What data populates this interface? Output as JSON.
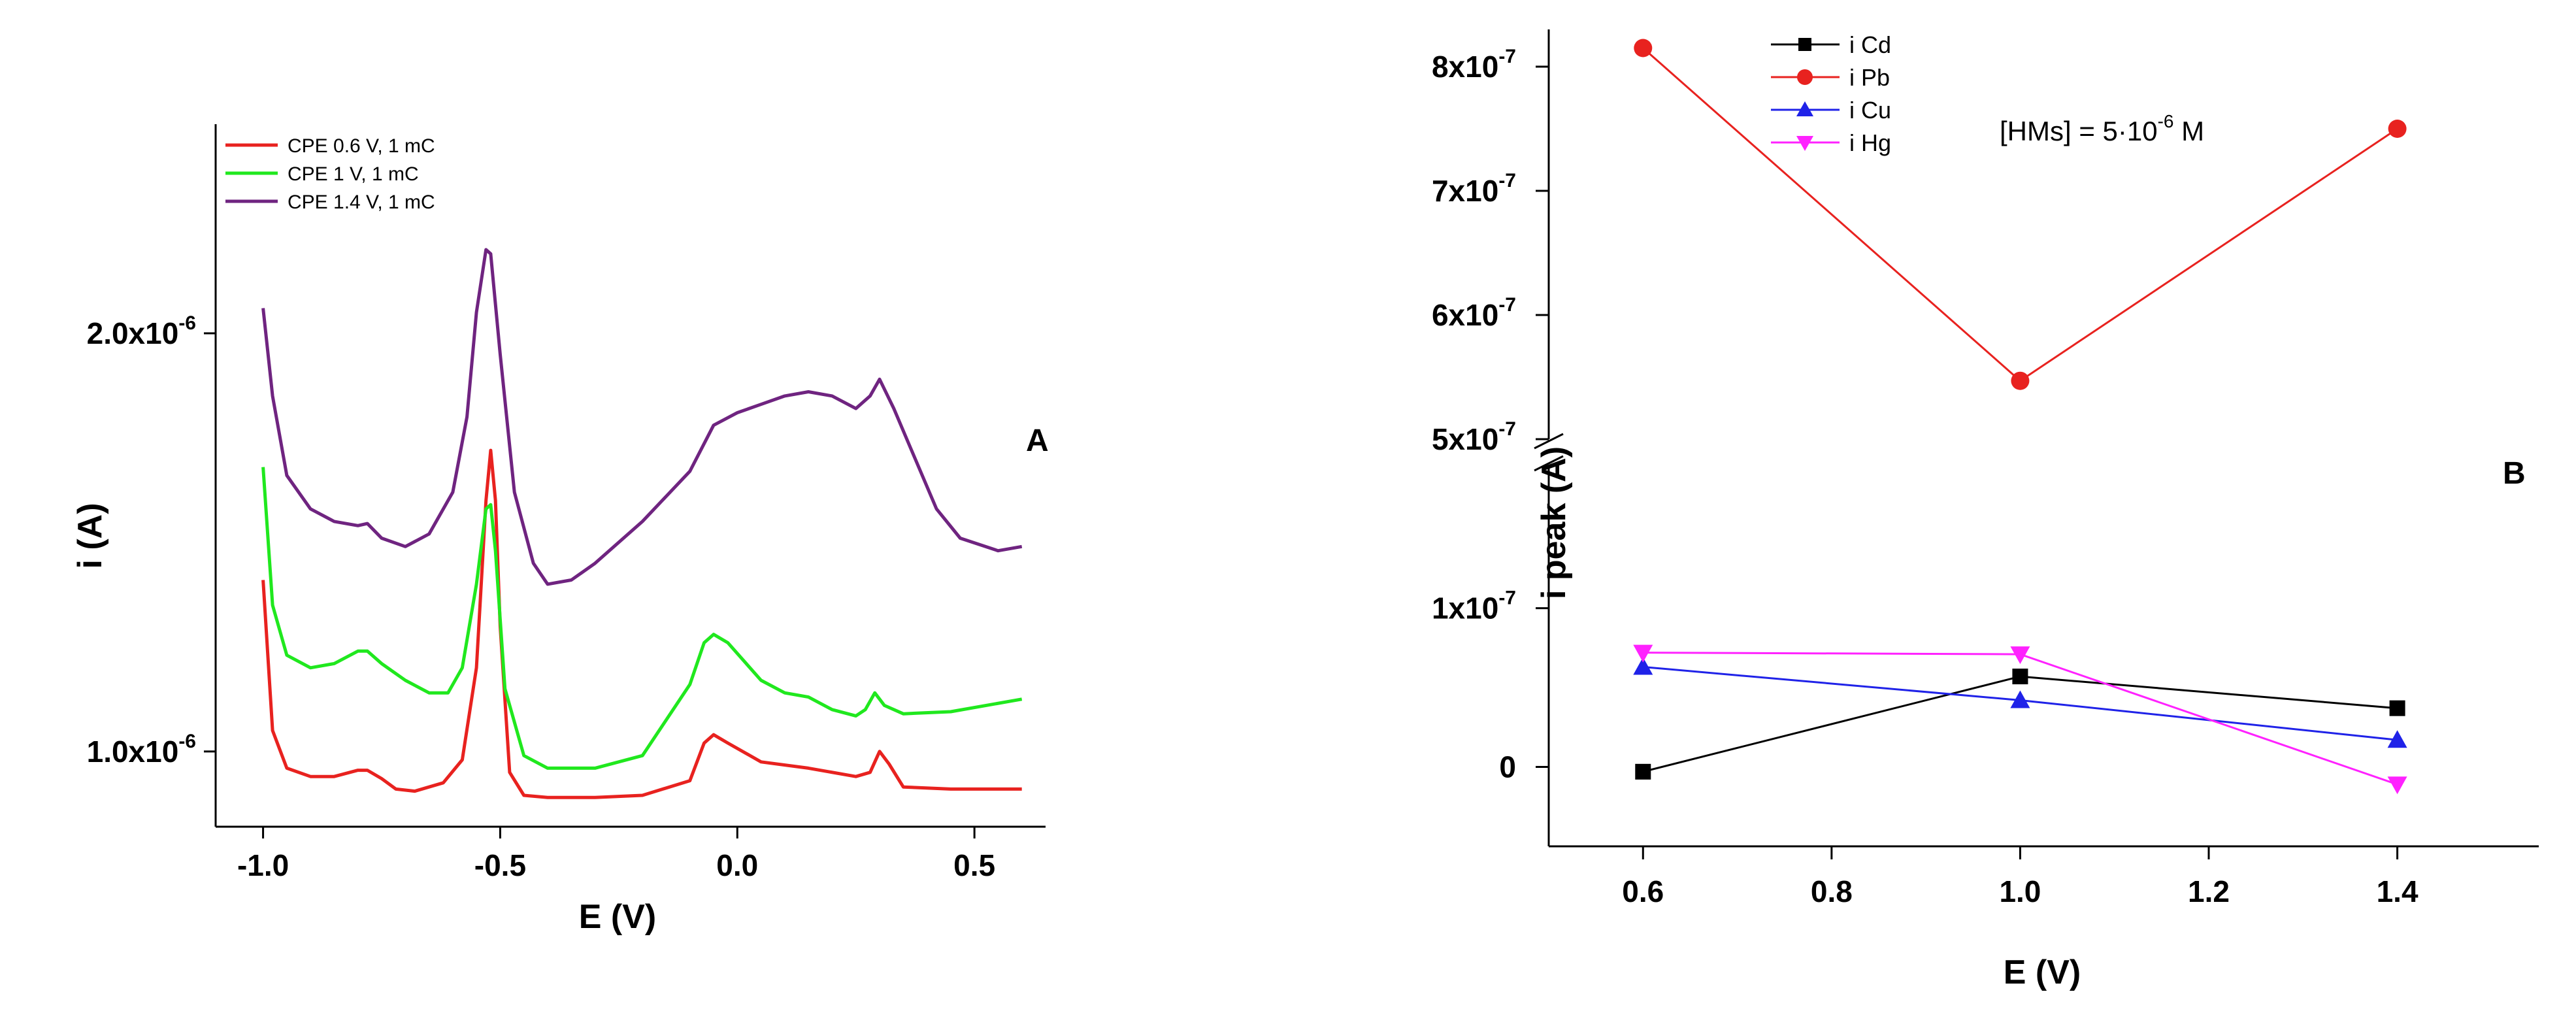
{
  "chart_data": [
    {
      "panel": "A",
      "type": "line",
      "xlabel": "E (V)",
      "ylabel": "i (A)",
      "xlim": [
        -1.1,
        0.65
      ],
      "ylim": [
        8.2e-07,
        2.5e-06
      ],
      "x_ticks": [
        -1.0,
        -0.5,
        0.0,
        0.5
      ],
      "x_tick_labels": [
        "-1.0",
        "-0.5",
        "0.0",
        "0.5"
      ],
      "y_ticks": [
        1e-06,
        2e-06
      ],
      "y_tick_mantissas": [
        "1.0x10",
        "2.0x10"
      ],
      "y_tick_exponents": [
        "-6",
        "-6"
      ],
      "legend_position": "top-left",
      "grid": false,
      "series": [
        {
          "name": "CPE 0.6 V, 1 mC",
          "color": "#e8221f",
          "points": [
            [
              -1.0,
              1.41e-06
            ],
            [
              -0.98,
              1.05e-06
            ],
            [
              -0.95,
              9.6e-07
            ],
            [
              -0.9,
              9.4e-07
            ],
            [
              -0.85,
              9.4e-07
            ],
            [
              -0.8,
              9.55e-07
            ],
            [
              -0.78,
              9.55e-07
            ],
            [
              -0.75,
              9.35e-07
            ],
            [
              -0.72,
              9.1e-07
            ],
            [
              -0.68,
              9.05e-07
            ],
            [
              -0.62,
              9.25e-07
            ],
            [
              -0.58,
              9.8e-07
            ],
            [
              -0.55,
              1.2e-06
            ],
            [
              -0.53,
              1.6e-06
            ],
            [
              -0.52,
              1.72e-06
            ],
            [
              -0.51,
              1.6e-06
            ],
            [
              -0.5,
              1.3e-06
            ],
            [
              -0.48,
              9.5e-07
            ],
            [
              -0.45,
              8.95e-07
            ],
            [
              -0.4,
              8.9e-07
            ],
            [
              -0.3,
              8.9e-07
            ],
            [
              -0.2,
              8.95e-07
            ],
            [
              -0.1,
              9.3e-07
            ],
            [
              -0.07,
              1.02e-06
            ],
            [
              -0.05,
              1.04e-06
            ],
            [
              -0.02,
              1.02e-06
            ],
            [
              0.05,
              9.75e-07
            ],
            [
              0.15,
              9.6e-07
            ],
            [
              0.25,
              9.4e-07
            ],
            [
              0.28,
              9.5e-07
            ],
            [
              0.3,
              1e-06
            ],
            [
              0.32,
              9.7e-07
            ],
            [
              0.35,
              9.15e-07
            ],
            [
              0.45,
              9.1e-07
            ],
            [
              0.6,
              9.1e-07
            ]
          ]
        },
        {
          "name": "CPE 1 V, 1 mC",
          "color": "#20e81e",
          "points": [
            [
              -1.0,
              1.68e-06
            ],
            [
              -0.98,
              1.35e-06
            ],
            [
              -0.95,
              1.23e-06
            ],
            [
              -0.9,
              1.2e-06
            ],
            [
              -0.85,
              1.21e-06
            ],
            [
              -0.8,
              1.24e-06
            ],
            [
              -0.78,
              1.24e-06
            ],
            [
              -0.75,
              1.21e-06
            ],
            [
              -0.7,
              1.17e-06
            ],
            [
              -0.65,
              1.14e-06
            ],
            [
              -0.61,
              1.14e-06
            ],
            [
              -0.58,
              1.2e-06
            ],
            [
              -0.55,
              1.4e-06
            ],
            [
              -0.53,
              1.58e-06
            ],
            [
              -0.52,
              1.59e-06
            ],
            [
              -0.51,
              1.48e-06
            ],
            [
              -0.49,
              1.15e-06
            ],
            [
              -0.45,
              9.9e-07
            ],
            [
              -0.4,
              9.6e-07
            ],
            [
              -0.3,
              9.6e-07
            ],
            [
              -0.2,
              9.9e-07
            ],
            [
              -0.1,
              1.16e-06
            ],
            [
              -0.07,
              1.26e-06
            ],
            [
              -0.05,
              1.28e-06
            ],
            [
              -0.02,
              1.26e-06
            ],
            [
              0.05,
              1.17e-06
            ],
            [
              0.1,
              1.14e-06
            ],
            [
              0.15,
              1.13e-06
            ],
            [
              0.2,
              1.1e-06
            ],
            [
              0.25,
              1.085e-06
            ],
            [
              0.27,
              1.1e-06
            ],
            [
              0.29,
              1.14e-06
            ],
            [
              0.31,
              1.11e-06
            ],
            [
              0.35,
              1.09e-06
            ],
            [
              0.45,
              1.095e-06
            ],
            [
              0.6,
              1.125e-06
            ]
          ]
        },
        {
          "name": "CPE 1.4 V, 1 mC",
          "color": "#6f2480",
          "points": [
            [
              -1.0,
              2.06e-06
            ],
            [
              -0.98,
              1.85e-06
            ],
            [
              -0.95,
              1.66e-06
            ],
            [
              -0.9,
              1.58e-06
            ],
            [
              -0.85,
              1.55e-06
            ],
            [
              -0.8,
              1.54e-06
            ],
            [
              -0.78,
              1.545e-06
            ],
            [
              -0.75,
              1.51e-06
            ],
            [
              -0.7,
              1.49e-06
            ],
            [
              -0.65,
              1.52e-06
            ],
            [
              -0.6,
              1.62e-06
            ],
            [
              -0.57,
              1.8e-06
            ],
            [
              -0.55,
              2.05e-06
            ],
            [
              -0.53,
              2.2e-06
            ],
            [
              -0.52,
              2.19e-06
            ],
            [
              -0.5,
              1.95e-06
            ],
            [
              -0.47,
              1.62e-06
            ],
            [
              -0.43,
              1.45e-06
            ],
            [
              -0.4,
              1.4e-06
            ],
            [
              -0.35,
              1.41e-06
            ],
            [
              -0.3,
              1.45e-06
            ],
            [
              -0.2,
              1.55e-06
            ],
            [
              -0.1,
              1.67e-06
            ],
            [
              -0.05,
              1.78e-06
            ],
            [
              0.0,
              1.81e-06
            ],
            [
              0.05,
              1.83e-06
            ],
            [
              0.1,
              1.85e-06
            ],
            [
              0.15,
              1.86e-06
            ],
            [
              0.2,
              1.85e-06
            ],
            [
              0.25,
              1.82e-06
            ],
            [
              0.28,
              1.85e-06
            ],
            [
              0.3,
              1.89e-06
            ],
            [
              0.33,
              1.82e-06
            ],
            [
              0.36,
              1.74e-06
            ],
            [
              0.42,
              1.58e-06
            ],
            [
              0.47,
              1.51e-06
            ],
            [
              0.55,
              1.48e-06
            ],
            [
              0.6,
              1.49e-06
            ]
          ]
        }
      ],
      "panel_label": "A"
    },
    {
      "panel": "B",
      "type": "line",
      "markers": true,
      "xlabel": "E (V)",
      "ylabel": "i peak (A)",
      "xlim": [
        0.5,
        1.55
      ],
      "x_ticks": [
        0.6,
        0.8,
        1.0,
        1.2,
        1.4
      ],
      "x_tick_labels": [
        "0.6",
        "0.8",
        "1.0",
        "1.2",
        "1.4"
      ],
      "y_axis_break": true,
      "ylim_lower": [
        -5e-08,
        1.9e-07
      ],
      "ylim_upper": [
        5e-07,
        8.3e-07
      ],
      "y_ticks_lower": [
        0,
        1e-07
      ],
      "y_ticks_lower_labels": [
        {
          "mantissa": "0",
          "exponent": ""
        },
        {
          "mantissa": "1x10",
          "exponent": "-7"
        }
      ],
      "y_ticks_upper": [
        5e-07,
        6e-07,
        7e-07,
        8e-07
      ],
      "y_ticks_upper_labels": [
        {
          "mantissa": "5x10",
          "exponent": "-7"
        },
        {
          "mantissa": "6x10",
          "exponent": "-7"
        },
        {
          "mantissa": "7x10",
          "exponent": "-7"
        },
        {
          "mantissa": "8x10",
          "exponent": "-7"
        }
      ],
      "annotation": {
        "prefix": "[HMs] = 5·10",
        "exponent": "-6",
        "suffix": " M"
      },
      "legend_position": "top-left",
      "grid": false,
      "x": [
        0.6,
        1.0,
        1.4
      ],
      "series": [
        {
          "name": "i Cd",
          "color": "#000000",
          "marker": "square",
          "values": [
            -3e-09,
            5.7e-08,
            3.7e-08
          ]
        },
        {
          "name": "i Pb",
          "color": "#e8221f",
          "marker": "circle",
          "values": [
            8.15e-07,
            5.47e-07,
            7.5e-07
          ]
        },
        {
          "name": "i Cu",
          "color": "#1f22e8",
          "marker": "triangle-up",
          "values": [
            6.3e-08,
            4.2e-08,
            1.7e-08
          ]
        },
        {
          "name": "i Hg",
          "color": "#ff22ff",
          "marker": "triangle-down",
          "values": [
            7.2e-08,
            7.1e-08,
            -1.1e-08
          ]
        }
      ],
      "panel_label": "B"
    }
  ]
}
